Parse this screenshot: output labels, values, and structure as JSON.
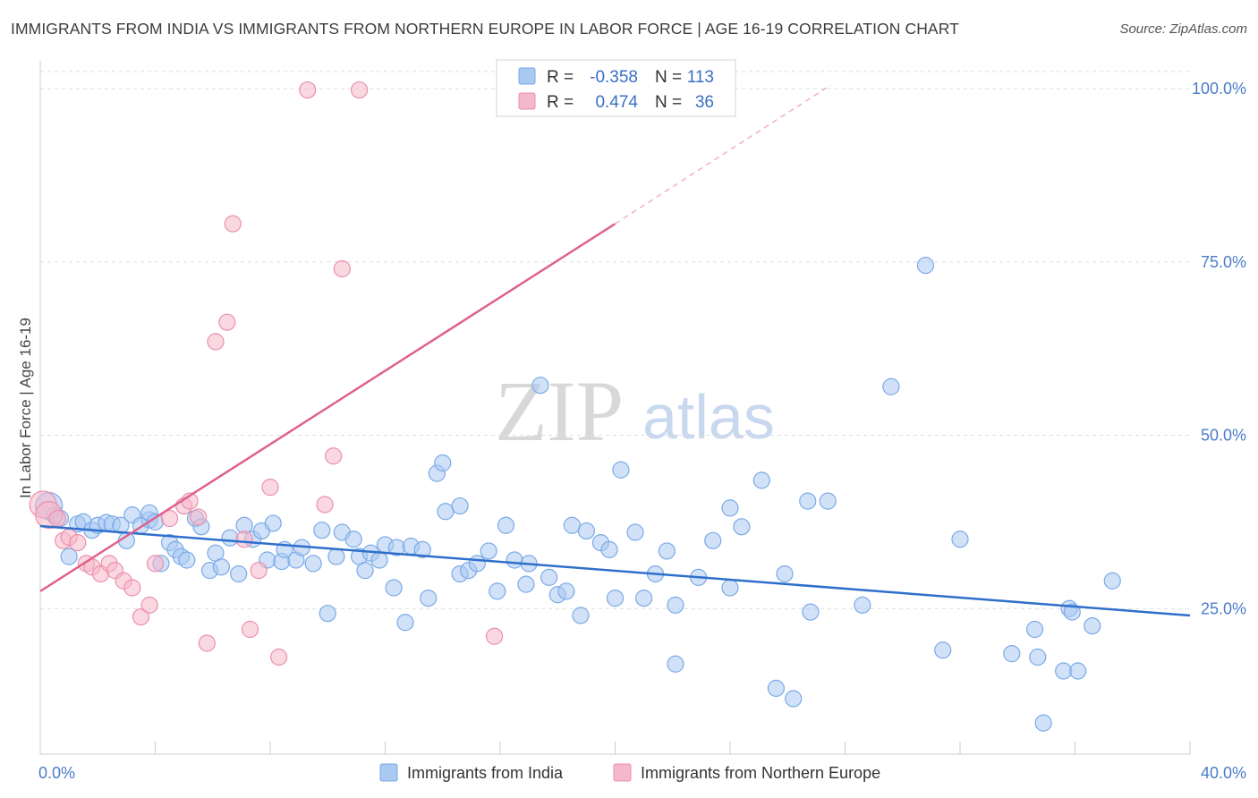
{
  "header": {
    "title": "IMMIGRANTS FROM INDIA VS IMMIGRANTS FROM NORTHERN EUROPE IN LABOR FORCE | AGE 16-19 CORRELATION CHART",
    "source": "Source: ZipAtlas.com"
  },
  "watermark": {
    "part1": "ZIP",
    "part2": "atlas"
  },
  "legend": {
    "rows": [
      {
        "r_label": "R =",
        "r_value": "-0.358",
        "n_label": "N =",
        "n_value": "113",
        "color": "#a9c8f2"
      },
      {
        "r_label": "R =",
        "r_value": "0.474",
        "n_label": "N =",
        "n_value": "36",
        "color": "#f5b8ca"
      }
    ]
  },
  "chart_data": {
    "type": "scatter",
    "ylabel": "In Labor Force | Age 16-19",
    "xlabel": "",
    "xlim": [
      0,
      40
    ],
    "ylim": [
      4,
      104
    ],
    "x_tick_labels": [
      {
        "value": 0,
        "label": "0.0%"
      },
      {
        "value": 40,
        "label": "40.0%"
      }
    ],
    "y_tick_labels": [
      {
        "value": 25,
        "label": "25.0%"
      },
      {
        "value": 50,
        "label": "50.0%"
      },
      {
        "value": 75,
        "label": "75.0%"
      },
      {
        "value": 100,
        "label": "100.0%"
      }
    ],
    "grid": "horizontal-dashed",
    "series": [
      {
        "name": "Immigrants from India",
        "color": "#a9c8f2",
        "stroke": "#7aaae6",
        "trend": {
          "x0": 0,
          "y0": 36.9,
          "x1": 40,
          "y1": 24.0,
          "color": "#2f6fcc"
        },
        "points": [
          [
            0.3,
            39.8
          ],
          [
            0.5,
            38.4
          ],
          [
            0.7,
            38.0
          ],
          [
            1.0,
            32.5
          ],
          [
            1.3,
            37.2
          ],
          [
            1.5,
            37.5
          ],
          [
            1.8,
            36.3
          ],
          [
            2.0,
            37.0
          ],
          [
            2.3,
            37.4
          ],
          [
            2.5,
            37.2
          ],
          [
            2.8,
            37.0
          ],
          [
            3.0,
            34.8
          ],
          [
            3.2,
            38.5
          ],
          [
            3.5,
            37.0
          ],
          [
            3.8,
            37.8
          ],
          [
            3.8,
            38.8
          ],
          [
            4.0,
            37.5
          ],
          [
            4.2,
            31.5
          ],
          [
            4.5,
            34.5
          ],
          [
            4.7,
            33.5
          ],
          [
            4.9,
            32.5
          ],
          [
            5.1,
            32.0
          ],
          [
            5.4,
            38.0
          ],
          [
            5.6,
            36.8
          ],
          [
            5.9,
            30.5
          ],
          [
            6.1,
            33.0
          ],
          [
            6.3,
            31.0
          ],
          [
            6.6,
            35.2
          ],
          [
            6.9,
            30.0
          ],
          [
            7.1,
            37.0
          ],
          [
            7.4,
            35.0
          ],
          [
            7.7,
            36.2
          ],
          [
            7.9,
            32.0
          ],
          [
            8.1,
            37.3
          ],
          [
            8.4,
            31.8
          ],
          [
            8.5,
            33.5
          ],
          [
            8.9,
            32.0
          ],
          [
            9.1,
            33.8
          ],
          [
            9.5,
            31.5
          ],
          [
            9.8,
            36.3
          ],
          [
            10.0,
            24.3
          ],
          [
            10.3,
            32.5
          ],
          [
            10.5,
            36.0
          ],
          [
            10.9,
            35.0
          ],
          [
            11.1,
            32.5
          ],
          [
            11.3,
            30.5
          ],
          [
            11.5,
            33.0
          ],
          [
            11.8,
            32.0
          ],
          [
            12.0,
            34.2
          ],
          [
            12.3,
            28.0
          ],
          [
            12.4,
            33.8
          ],
          [
            12.7,
            23.0
          ],
          [
            12.9,
            34.0
          ],
          [
            13.3,
            33.5
          ],
          [
            13.5,
            26.5
          ],
          [
            13.8,
            44.5
          ],
          [
            14.0,
            46.0
          ],
          [
            14.1,
            39.0
          ],
          [
            14.6,
            30.0
          ],
          [
            14.6,
            39.8
          ],
          [
            14.9,
            30.5
          ],
          [
            15.2,
            31.5
          ],
          [
            15.6,
            33.3
          ],
          [
            15.9,
            27.5
          ],
          [
            16.2,
            37.0
          ],
          [
            16.5,
            32.0
          ],
          [
            16.9,
            28.5
          ],
          [
            17.0,
            31.5
          ],
          [
            17.4,
            57.2
          ],
          [
            17.7,
            29.5
          ],
          [
            18.0,
            27.0
          ],
          [
            18.3,
            27.5
          ],
          [
            18.5,
            37.0
          ],
          [
            18.8,
            24.0
          ],
          [
            19.0,
            36.2
          ],
          [
            19.5,
            34.5
          ],
          [
            19.8,
            33.5
          ],
          [
            20.0,
            26.5
          ],
          [
            20.2,
            45.0
          ],
          [
            20.7,
            36.0
          ],
          [
            21.0,
            26.5
          ],
          [
            21.4,
            30.0
          ],
          [
            22.1,
            25.5
          ],
          [
            22.1,
            17.0
          ],
          [
            22.9,
            29.5
          ],
          [
            24.0,
            28.0
          ],
          [
            24.0,
            39.5
          ],
          [
            24.4,
            36.8
          ],
          [
            25.1,
            43.5
          ],
          [
            25.6,
            13.5
          ],
          [
            25.9,
            30.0
          ],
          [
            26.2,
            12.0
          ],
          [
            26.7,
            40.5
          ],
          [
            26.8,
            24.5
          ],
          [
            27.4,
            40.5
          ],
          [
            28.6,
            25.5
          ],
          [
            29.6,
            57.0
          ],
          [
            30.8,
            74.5
          ],
          [
            31.4,
            19.0
          ],
          [
            32.0,
            35.0
          ],
          [
            33.8,
            18.5
          ],
          [
            34.6,
            22.0
          ],
          [
            34.7,
            18.0
          ],
          [
            34.9,
            8.5
          ],
          [
            35.8,
            25.0
          ],
          [
            35.6,
            16.0
          ],
          [
            36.6,
            22.5
          ],
          [
            37.3,
            29.0
          ],
          [
            36.1,
            16.0
          ],
          [
            35.9,
            24.5
          ],
          [
            21.8,
            33.3
          ],
          [
            23.4,
            34.8
          ]
        ]
      },
      {
        "name": "Immigrants from Northern Europe",
        "color": "#f5b8ca",
        "stroke": "#eb8fab",
        "trend": {
          "x0": 0,
          "y0": 27.5,
          "x1": 20,
          "y1": 80.5,
          "x_dash_end": 27.5,
          "y_dash_end": 100.5,
          "color": "#e0608a"
        },
        "points": [
          [
            0.1,
            40.0
          ],
          [
            0.3,
            38.5
          ],
          [
            0.6,
            38.0
          ],
          [
            0.8,
            34.8
          ],
          [
            1.0,
            35.3
          ],
          [
            1.3,
            34.5
          ],
          [
            1.6,
            31.5
          ],
          [
            1.8,
            31.0
          ],
          [
            2.1,
            30.0
          ],
          [
            2.4,
            31.5
          ],
          [
            2.6,
            30.5
          ],
          [
            2.9,
            29.0
          ],
          [
            3.2,
            28.0
          ],
          [
            3.5,
            23.8
          ],
          [
            3.8,
            25.5
          ],
          [
            4.0,
            31.5
          ],
          [
            4.5,
            38.0
          ],
          [
            5.0,
            39.8
          ],
          [
            5.2,
            40.5
          ],
          [
            5.5,
            38.2
          ],
          [
            5.8,
            20.0
          ],
          [
            6.1,
            63.5
          ],
          [
            6.5,
            66.3
          ],
          [
            6.7,
            80.5
          ],
          [
            7.1,
            35.0
          ],
          [
            7.3,
            22.0
          ],
          [
            7.6,
            30.5
          ],
          [
            8.0,
            42.5
          ],
          [
            8.3,
            18.0
          ],
          [
            9.3,
            99.8
          ],
          [
            9.9,
            40.0
          ],
          [
            10.2,
            47.0
          ],
          [
            10.5,
            74.0
          ],
          [
            11.1,
            99.8
          ],
          [
            15.8,
            21.0
          ],
          [
            18.0,
            99.8
          ]
        ]
      }
    ]
  }
}
